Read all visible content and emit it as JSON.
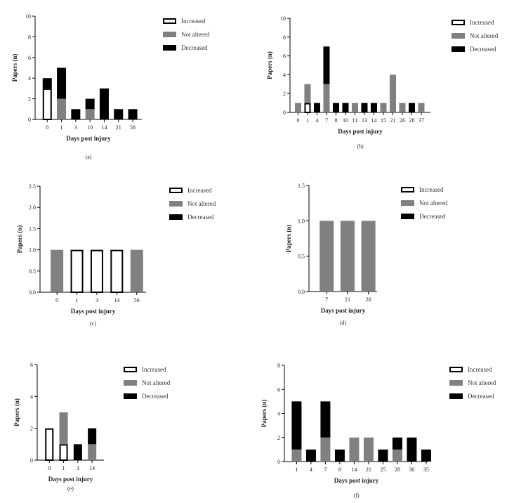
{
  "colors": {
    "increased": "#ffffff",
    "not_altered": "#808080",
    "decreased": "#000000",
    "axis": "#000000"
  },
  "chart_data": [
    {
      "type": "bar",
      "stacked": true,
      "caption": "(a)",
      "xlabel": "Days post injury",
      "ylabel": "Papers (n)",
      "ylim": [
        0,
        10
      ],
      "yticks": [
        0,
        2,
        4,
        6,
        8,
        10
      ],
      "ytick_labels": [
        "0",
        "2",
        "4",
        "6",
        "8",
        "10"
      ],
      "categories": [
        "0",
        "1",
        "3",
        "10",
        "14",
        "21",
        "56"
      ],
      "series": [
        {
          "name": "Increased",
          "values": [
            3,
            0,
            0,
            0,
            0,
            0,
            0
          ]
        },
        {
          "name": "Not altered",
          "values": [
            0,
            2,
            0,
            1,
            0,
            0,
            0
          ]
        },
        {
          "name": "Decreased",
          "values": [
            1,
            3,
            1,
            1,
            3,
            1,
            1
          ]
        }
      ],
      "legend": "right"
    },
    {
      "type": "bar",
      "stacked": true,
      "caption": "(b)",
      "xlabel": "Days post injury",
      "ylabel": "Papers (n)",
      "ylim": [
        0,
        10
      ],
      "yticks": [
        0,
        2,
        4,
        6,
        8,
        10
      ],
      "ytick_labels": [
        "0",
        "2",
        "4",
        "6",
        "8",
        "10"
      ],
      "categories": [
        "0",
        "1",
        "4",
        "7",
        "8",
        "10",
        "11",
        "13",
        "14",
        "15",
        "21",
        "26",
        "28",
        "37"
      ],
      "series": [
        {
          "name": "Increased",
          "values": [
            0,
            1,
            0,
            0,
            0,
            0,
            0,
            0,
            0,
            0,
            0,
            0,
            0,
            0
          ]
        },
        {
          "name": "Not altered",
          "values": [
            1,
            2,
            0,
            3,
            0,
            0,
            1,
            0,
            0,
            1,
            4,
            1,
            0,
            1
          ]
        },
        {
          "name": "Decreased",
          "values": [
            0,
            0,
            1,
            4,
            1,
            1,
            0,
            1,
            1,
            0,
            0,
            0,
            1,
            0
          ]
        }
      ],
      "legend": "right"
    },
    {
      "type": "bar",
      "stacked": true,
      "caption": "(c)",
      "xlabel": "Days post injury",
      "ylabel": "Papers (n)",
      "ylim": [
        0,
        2.5
      ],
      "yticks": [
        0,
        0.5,
        1,
        1.5,
        2,
        2.5
      ],
      "ytick_labels": [
        "0.0",
        "0.5",
        "1.0",
        "1.5",
        "2.0",
        "2.5"
      ],
      "categories": [
        "0",
        "1",
        "3",
        "14",
        "56"
      ],
      "series": [
        {
          "name": "Increased",
          "values": [
            0,
            1,
            1,
            1,
            0
          ]
        },
        {
          "name": "Not altered",
          "values": [
            1,
            0,
            0,
            0,
            1
          ]
        },
        {
          "name": "Decreased",
          "values": [
            0,
            0,
            0,
            0,
            0
          ]
        }
      ],
      "legend": "right"
    },
    {
      "type": "bar",
      "stacked": true,
      "caption": "(d)",
      "xlabel": "Days post injury",
      "ylabel": "Papers (n)",
      "ylim": [
        0,
        1.5
      ],
      "yticks": [
        0,
        0.5,
        1,
        1.5
      ],
      "ytick_labels": [
        "0.0",
        "0.5",
        "1.0",
        "1.5"
      ],
      "categories": [
        "7",
        "21",
        "26"
      ],
      "series": [
        {
          "name": "Increased",
          "values": [
            0,
            0,
            0
          ]
        },
        {
          "name": "Not altered",
          "values": [
            1,
            1,
            1
          ]
        },
        {
          "name": "Decreased",
          "values": [
            0,
            0,
            0
          ]
        }
      ],
      "legend": "right"
    },
    {
      "type": "bar",
      "stacked": true,
      "caption": "(e)",
      "xlabel": "Days post injury",
      "ylabel": "Papers (n)",
      "ylim": [
        0,
        6
      ],
      "yticks": [
        0,
        2,
        4,
        6
      ],
      "ytick_labels": [
        "0",
        "2",
        "4",
        "6"
      ],
      "categories": [
        "0",
        "1",
        "3",
        "14"
      ],
      "series": [
        {
          "name": "Increased",
          "values": [
            2,
            1,
            0,
            0
          ]
        },
        {
          "name": "Not altered",
          "values": [
            0,
            2,
            0,
            1
          ]
        },
        {
          "name": "Decreased",
          "values": [
            0,
            0,
            1,
            1
          ]
        }
      ],
      "legend": "right"
    },
    {
      "type": "bar",
      "stacked": true,
      "caption": "(f)",
      "xlabel": "Days post injury",
      "ylabel": "Papers (n)",
      "ylim": [
        0,
        8
      ],
      "yticks": [
        0,
        2,
        4,
        6,
        8
      ],
      "ytick_labels": [
        "0",
        "2",
        "4",
        "6",
        "8"
      ],
      "categories": [
        "1",
        "4",
        "7",
        "8",
        "14",
        "21",
        "25",
        "28",
        "30",
        "35"
      ],
      "series": [
        {
          "name": "Increased",
          "values": [
            0,
            0,
            0,
            0,
            0,
            0,
            0,
            0,
            0,
            0
          ]
        },
        {
          "name": "Not altered",
          "values": [
            1,
            0,
            2,
            0,
            2,
            2,
            0,
            1,
            0,
            0
          ]
        },
        {
          "name": "Decreased",
          "values": [
            4,
            1,
            3,
            1,
            0,
            0,
            1,
            1,
            2,
            1
          ]
        }
      ],
      "legend": "right"
    }
  ]
}
